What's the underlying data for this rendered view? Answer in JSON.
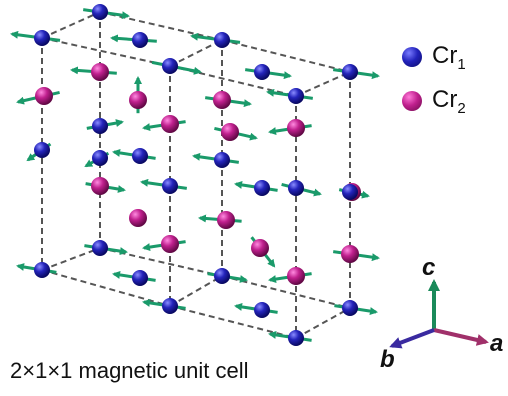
{
  "legend": [
    {
      "label": "Cr",
      "subscript": "1",
      "color": "#1f1fa8"
    },
    {
      "label": "Cr",
      "subscript": "2",
      "color": "#b8208a"
    }
  ],
  "caption": "2×1×1 magnetic unit cell",
  "axes": {
    "a": "a",
    "b": "b",
    "c": "c"
  },
  "colors": {
    "cr1": "#1f1fa8",
    "cr2": "#b8208a",
    "spin_arrow": "#1a9a6a",
    "axis_a": "#a0306a",
    "axis_b": "#3a2aa0",
    "axis_c": "#1a8a5a",
    "cell_edges": "#555555"
  }
}
